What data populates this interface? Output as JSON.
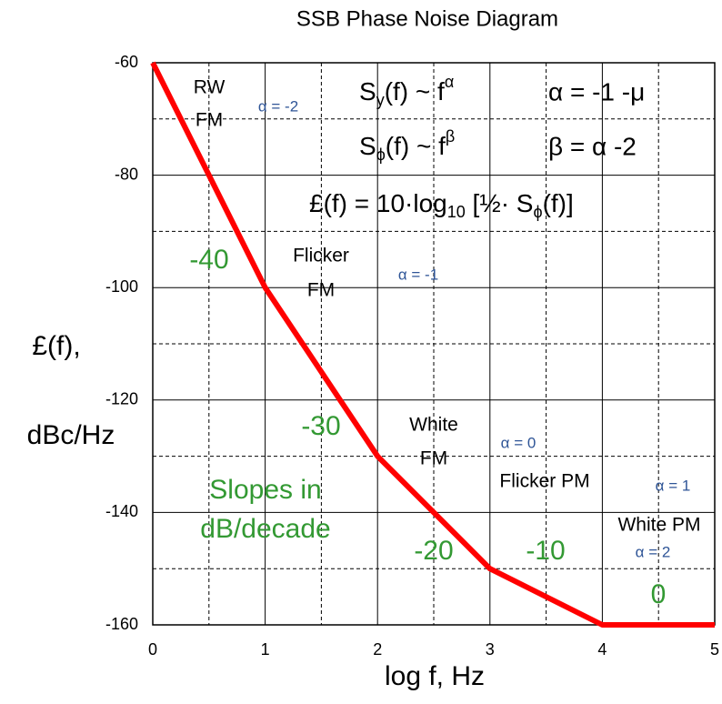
{
  "chart_data": {
    "type": "line",
    "title": "SSB Phase Noise Diagram",
    "x_label": "log f, Hz",
    "y_label": [
      "£(f),",
      "dBc/Hz"
    ],
    "xlim": [
      0,
      5
    ],
    "ylim": [
      -160,
      -60
    ],
    "xticks": [
      0,
      1,
      2,
      3,
      4,
      5
    ],
    "yticks": [
      -160,
      -140,
      -120,
      -100,
      -80,
      -60
    ],
    "minor_xticks": [
      0.5,
      1.5,
      2.5,
      3.5,
      4.5
    ],
    "minor_yticks": [
      -150,
      -130,
      -110,
      -90,
      -70
    ],
    "grid": true,
    "series": [
      {
        "name": "£(f)",
        "color": "#ff0000",
        "x": [
          0,
          1,
          2,
          3,
          4,
          5
        ],
        "values": [
          -60,
          -100,
          -130,
          -150,
          -160,
          -160
        ]
      }
    ],
    "noise_labels": [
      "RW",
      "FM",
      "Flicker",
      "FM",
      "White",
      "FM",
      "Flicker PM",
      "White PM"
    ],
    "alpha_labels": [
      "α = -2",
      "α = -1",
      "α = 0",
      "α = 1",
      "α = 2"
    ],
    "slope_labels": [
      "-40",
      "-30",
      "-20",
      "-10",
      "0"
    ],
    "slope_note": [
      "Slopes in",
      "dB/decade"
    ],
    "formulas": [
      [
        "S",
        "y",
        "(f) ~ f",
        "α",
        "α = -1 -μ"
      ],
      [
        "S",
        "ϕ",
        "(f) ~ f",
        "β",
        "β = α -2"
      ],
      [
        "£(f) = 10·log",
        "10",
        " [½· S",
        "ϕ",
        "(f)]"
      ]
    ]
  }
}
